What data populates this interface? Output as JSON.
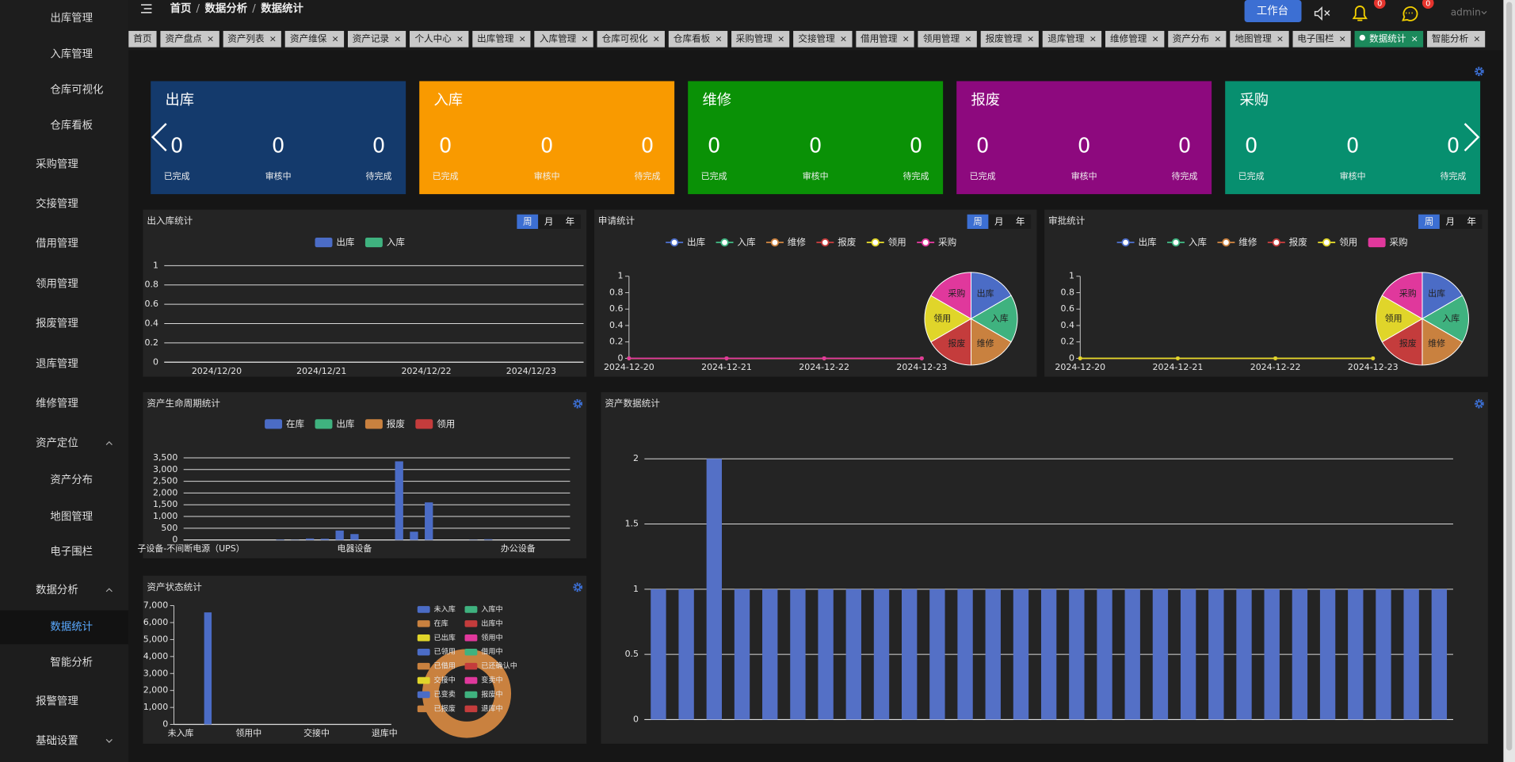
{
  "sidebar": {
    "items": [
      "出库管理",
      "入库管理",
      "仓库可视化",
      "仓库看板",
      "采购管理",
      "交接管理",
      "借用管理",
      "领用管理",
      "报废管理",
      "退库管理",
      "维修管理",
      "资产定位",
      "资产分布",
      "地图管理",
      "电子围栏",
      "数据分析",
      "数据统计",
      "智能分析",
      "报警管理",
      "基础设置"
    ],
    "active_item": 16
  },
  "header": {
    "breadcrumb": [
      "首页",
      "数据分析",
      "数据统计"
    ],
    "separator": "/",
    "workbench": "工作台",
    "notifications": 0,
    "messages": 0,
    "user": "admin"
  },
  "tabs": {
    "items": [
      "首页",
      "资产盘点",
      "资产列表",
      "资产维保",
      "资产记录",
      "个人中心",
      "出库管理",
      "入库管理",
      "仓库可视化",
      "仓库看板",
      "采购管理",
      "交接管理",
      "借用管理",
      "领用管理",
      "报废管理",
      "退库管理",
      "维修管理",
      "资产分布",
      "地图管理",
      "电子围栏",
      "数据统计",
      "智能分析"
    ],
    "close": "×",
    "active_tab": 20
  },
  "cards": {
    "labels": [
      "已完成",
      "审核中",
      "待完成"
    ],
    "items": [
      {
        "title": "出库",
        "color": "#143a6c",
        "values": [
          0,
          0,
          0
        ]
      },
      {
        "title": "入库",
        "color": "#f99a00",
        "values": [
          0,
          0,
          0
        ]
      },
      {
        "title": "维修",
        "color": "#0a9106",
        "values": [
          0,
          0,
          0
        ]
      },
      {
        "title": "报废",
        "color": "#8d097e",
        "values": [
          0,
          0,
          0
        ]
      },
      {
        "title": "采购",
        "color": "#078f6f",
        "values": [
          0,
          0,
          0
        ]
      }
    ]
  },
  "charts": [
    {
      "type": "bar",
      "title": "出入库统计",
      "periods": [
        "周",
        "月",
        "年"
      ],
      "categories": [
        "2024/12/20",
        "2024/12/21",
        "2024/12/22",
        "2024/12/23"
      ],
      "series": [
        {
          "name": "出库",
          "color": "#4b6cc6",
          "values": [
            0,
            0,
            0,
            0
          ]
        },
        {
          "name": "入库",
          "color": "#3fb27f",
          "values": [
            0,
            0,
            0,
            0
          ]
        }
      ],
      "ylim": [
        0,
        1
      ],
      "yticks": [
        0,
        0.2,
        0.4,
        0.6,
        0.8,
        1
      ],
      "grid": true
    },
    {
      "type": "line",
      "title": "申请统计",
      "periods": [
        "周",
        "月",
        "年"
      ],
      "categories": [
        "2024-12-20",
        "2024-12-21",
        "2024-12-22",
        "2024-12-23"
      ],
      "series": [
        {
          "name": "出库",
          "color": "#4b6cc6",
          "values": [
            0,
            0,
            0,
            0
          ]
        },
        {
          "name": "入库",
          "color": "#3fb27f",
          "values": [
            0,
            0,
            0,
            0
          ]
        },
        {
          "name": "维修",
          "color": "#c9813f",
          "values": [
            0,
            0,
            0,
            0
          ]
        },
        {
          "name": "报废",
          "color": "#c43c3c",
          "values": [
            0,
            0,
            0,
            0
          ]
        },
        {
          "name": "领用",
          "color": "#e0d52a",
          "values": [
            0,
            0,
            0,
            0
          ]
        },
        {
          "name": "采购",
          "color": "#e0389c",
          "values": [
            0,
            0,
            0,
            0
          ]
        }
      ],
      "ylim": [
        0,
        1
      ],
      "yticks": [
        0,
        0.2,
        0.4,
        0.6,
        0.8,
        1
      ],
      "grid": false,
      "pie_values": [
        0,
        0,
        0,
        0,
        0,
        0
      ]
    },
    {
      "type": "line",
      "title": "审批统计",
      "periods": [
        "周",
        "月",
        "年"
      ],
      "categories": [
        "2024-12-20",
        "2024-12-21",
        "2024-12-22",
        "2024-12-23"
      ],
      "series": [
        {
          "name": "出库",
          "color": "#4b6cc6",
          "values": [
            0,
            0,
            0,
            0
          ]
        },
        {
          "name": "入库",
          "color": "#3fb27f",
          "values": [
            0,
            0,
            0,
            0
          ]
        },
        {
          "name": "维修",
          "color": "#c9813f",
          "values": [
            0,
            0,
            0,
            0
          ]
        },
        {
          "name": "报废",
          "color": "#c43c3c",
          "values": [
            0,
            0,
            0,
            0
          ]
        },
        {
          "name": "领用",
          "color": "#e0d52a",
          "values": [
            0,
            0,
            0,
            0
          ]
        },
        {
          "name": "采购",
          "color": "#e0389c",
          "type": "bar",
          "values": [
            0,
            0,
            0,
            0
          ]
        }
      ],
      "ylim": [
        0,
        1
      ],
      "yticks": [
        0,
        0.2,
        0.4,
        0.6,
        0.8,
        1
      ],
      "grid": false,
      "pie_values": [
        0,
        0,
        0,
        0,
        0,
        0
      ]
    },
    {
      "type": "bar",
      "title": "资产生命周期统计",
      "stacked": true,
      "categories": [
        "子设备-不间断电源（UPS）",
        null,
        null,
        null,
        null,
        null,
        null,
        null,
        null,
        null,
        null,
        "电器设备",
        null,
        null,
        null,
        null,
        null,
        null,
        null,
        null,
        null,
        null,
        "办公设备",
        null,
        null,
        null
      ],
      "series": [
        {
          "name": "在库",
          "color": "#4b6cc6",
          "values": [
            0,
            0,
            0,
            0,
            0,
            0,
            20,
            10,
            60,
            50,
            400,
            250,
            0,
            0,
            3350,
            350,
            1600,
            0,
            0,
            10,
            30,
            0,
            0,
            0,
            0,
            0
          ]
        },
        {
          "name": "出库",
          "color": "#3fb27f",
          "values": [
            0,
            0,
            0,
            0,
            0,
            0,
            0,
            0,
            0,
            0,
            0,
            0,
            0,
            0,
            0,
            0,
            0,
            0,
            0,
            0,
            0,
            0,
            0,
            0,
            0,
            0
          ]
        },
        {
          "name": "报废",
          "color": "#c9813f",
          "values": [
            0,
            0,
            0,
            0,
            0,
            0,
            0,
            0,
            0,
            0,
            0,
            0,
            0,
            0,
            0,
            0,
            0,
            0,
            0,
            0,
            0,
            0,
            0,
            0,
            0,
            0
          ]
        },
        {
          "name": "领用",
          "color": "#c43c3c",
          "values": [
            0,
            0,
            0,
            0,
            0,
            0,
            0,
            0,
            0,
            0,
            0,
            0,
            0,
            0,
            0,
            0,
            0,
            0,
            0,
            0,
            0,
            0,
            0,
            0,
            0,
            0
          ]
        }
      ],
      "ylim": [
        0,
        3500
      ],
      "yticks": [
        0,
        500,
        {
          "value": 1000,
          "label": "1,000"
        },
        {
          "value": 1500,
          "label": "1,500"
        },
        {
          "value": 2000,
          "label": "2,000"
        },
        {
          "value": 2500,
          "label": "2,500"
        },
        {
          "value": 3000,
          "label": "3,000"
        },
        {
          "value": 3500,
          "label": "3,500"
        }
      ],
      "grid": true
    },
    {
      "type": "bar",
      "title": "资产状态统计",
      "donut": true,
      "categories": [
        "未入库",
        "入库中",
        "在库",
        "出库中",
        "已出库",
        "领用中",
        "已领用",
        "借用中",
        "已借用",
        "已还确认中",
        "交接中",
        "变卖中",
        "已变卖",
        "报废中",
        "已报废",
        "退库中"
      ],
      "values": [
        0,
        0,
        6600,
        0,
        0,
        0,
        0,
        0,
        0,
        0,
        0,
        0,
        0,
        0,
        0,
        0
      ],
      "color": "#4b6cc6",
      "category_colors": [
        "#4b6cc6",
        "#3fb27f",
        "#c9813f",
        "#c43c3c",
        "#e0d52a",
        "#e0389c",
        "#4b6cc6",
        "#3fb27f",
        "#c9813f",
        "#c43c3c",
        "#e0d52a",
        "#e0389c",
        "#4b6cc6",
        "#3fb27f",
        "#c9813f",
        "#c43c3c"
      ],
      "ylim": [
        0,
        7000
      ],
      "yticks": [
        0,
        {
          "value": 1000,
          "label": "1,000"
        },
        {
          "value": 2000,
          "label": "2,000"
        },
        {
          "value": 3000,
          "label": "3,000"
        },
        {
          "value": 4000,
          "label": "4,000"
        },
        {
          "value": 5000,
          "label": "5,000"
        },
        {
          "value": 6000,
          "label": "6,000"
        },
        {
          "value": 7000,
          "label": "7,000"
        }
      ],
      "grid": false
    },
    {
      "type": "bar",
      "title": "资产数据统计",
      "categories": [
        null,
        null,
        null,
        null,
        null,
        null,
        null,
        null,
        null,
        null,
        null,
        null,
        null,
        null,
        null,
        null,
        null,
        null,
        null,
        null,
        null,
        null,
        null,
        null,
        null,
        null,
        null,
        null,
        null
      ],
      "values": [
        1,
        1,
        2,
        1,
        1,
        1,
        1,
        1,
        1,
        1,
        1,
        1,
        1,
        1,
        1,
        1,
        1,
        1,
        1,
        1,
        1,
        1,
        1,
        1,
        1,
        1,
        1,
        1,
        1
      ],
      "color": "#5470c6",
      "ylim": [
        0,
        2
      ],
      "yticks": [
        0,
        0.5,
        1,
        1.5,
        2
      ],
      "grid": true
    }
  ]
}
